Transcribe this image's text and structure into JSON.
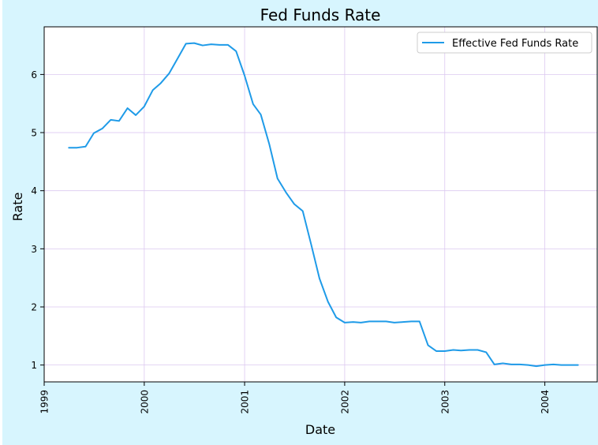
{
  "chart_data": {
    "type": "line",
    "title": "Fed Funds Rate",
    "xlabel": "Date",
    "ylabel": "Rate",
    "x_tick_labels": [
      "1999",
      "2000",
      "2001",
      "2002",
      "2003",
      "2004"
    ],
    "y_ticks": [
      1,
      2,
      3,
      4,
      5,
      6
    ],
    "xlim": [
      "1999-01-01",
      "2004-07-10"
    ],
    "ylim": [
      0.71,
      6.82
    ],
    "grid": true,
    "legend_position": "top-right",
    "series": [
      {
        "name": "Effective Fed Funds Rate",
        "color": "#1f9be8",
        "points": [
          [
            "1999-04-01",
            4.74
          ],
          [
            "1999-05-01",
            4.74
          ],
          [
            "1999-06-01",
            4.76
          ],
          [
            "1999-07-01",
            4.99
          ],
          [
            "1999-08-01",
            5.07
          ],
          [
            "1999-09-01",
            5.22
          ],
          [
            "1999-10-01",
            5.2
          ],
          [
            "1999-11-01",
            5.42
          ],
          [
            "1999-12-01",
            5.3
          ],
          [
            "2000-01-01",
            5.45
          ],
          [
            "2000-02-01",
            5.73
          ],
          [
            "2000-03-01",
            5.85
          ],
          [
            "2000-04-01",
            6.02
          ],
          [
            "2000-05-01",
            6.27
          ],
          [
            "2000-06-01",
            6.53
          ],
          [
            "2000-07-01",
            6.54
          ],
          [
            "2000-08-01",
            6.5
          ],
          [
            "2000-09-01",
            6.52
          ],
          [
            "2000-10-01",
            6.51
          ],
          [
            "2000-11-01",
            6.51
          ],
          [
            "2000-12-01",
            6.4
          ],
          [
            "2001-01-01",
            5.98
          ],
          [
            "2001-02-01",
            5.49
          ],
          [
            "2001-03-01",
            5.31
          ],
          [
            "2001-04-01",
            4.8
          ],
          [
            "2001-05-01",
            4.21
          ],
          [
            "2001-06-01",
            3.97
          ],
          [
            "2001-07-01",
            3.77
          ],
          [
            "2001-08-01",
            3.65
          ],
          [
            "2001-09-01",
            3.07
          ],
          [
            "2001-10-01",
            2.49
          ],
          [
            "2001-11-01",
            2.09
          ],
          [
            "2001-12-01",
            1.82
          ],
          [
            "2002-01-01",
            1.73
          ],
          [
            "2002-02-01",
            1.74
          ],
          [
            "2002-03-01",
            1.73
          ],
          [
            "2002-04-01",
            1.75
          ],
          [
            "2002-05-01",
            1.75
          ],
          [
            "2002-06-01",
            1.75
          ],
          [
            "2002-07-01",
            1.73
          ],
          [
            "2002-08-01",
            1.74
          ],
          [
            "2002-09-01",
            1.75
          ],
          [
            "2002-10-01",
            1.75
          ],
          [
            "2002-11-01",
            1.34
          ],
          [
            "2002-12-01",
            1.24
          ],
          [
            "2003-01-01",
            1.24
          ],
          [
            "2003-02-01",
            1.26
          ],
          [
            "2003-03-01",
            1.25
          ],
          [
            "2003-04-01",
            1.26
          ],
          [
            "2003-05-01",
            1.26
          ],
          [
            "2003-06-01",
            1.22
          ],
          [
            "2003-07-01",
            1.01
          ],
          [
            "2003-08-01",
            1.03
          ],
          [
            "2003-09-01",
            1.01
          ],
          [
            "2003-10-01",
            1.01
          ],
          [
            "2003-11-01",
            1.0
          ],
          [
            "2003-12-01",
            0.98
          ],
          [
            "2004-01-01",
            1.0
          ],
          [
            "2004-02-01",
            1.01
          ],
          [
            "2004-03-01",
            1.0
          ],
          [
            "2004-04-01",
            1.0
          ],
          [
            "2004-05-01",
            1.0
          ]
        ]
      }
    ],
    "colors": {
      "background": "#d7f5fe",
      "plot_background": "#ffffff",
      "grid": "#dcc8f0"
    }
  }
}
